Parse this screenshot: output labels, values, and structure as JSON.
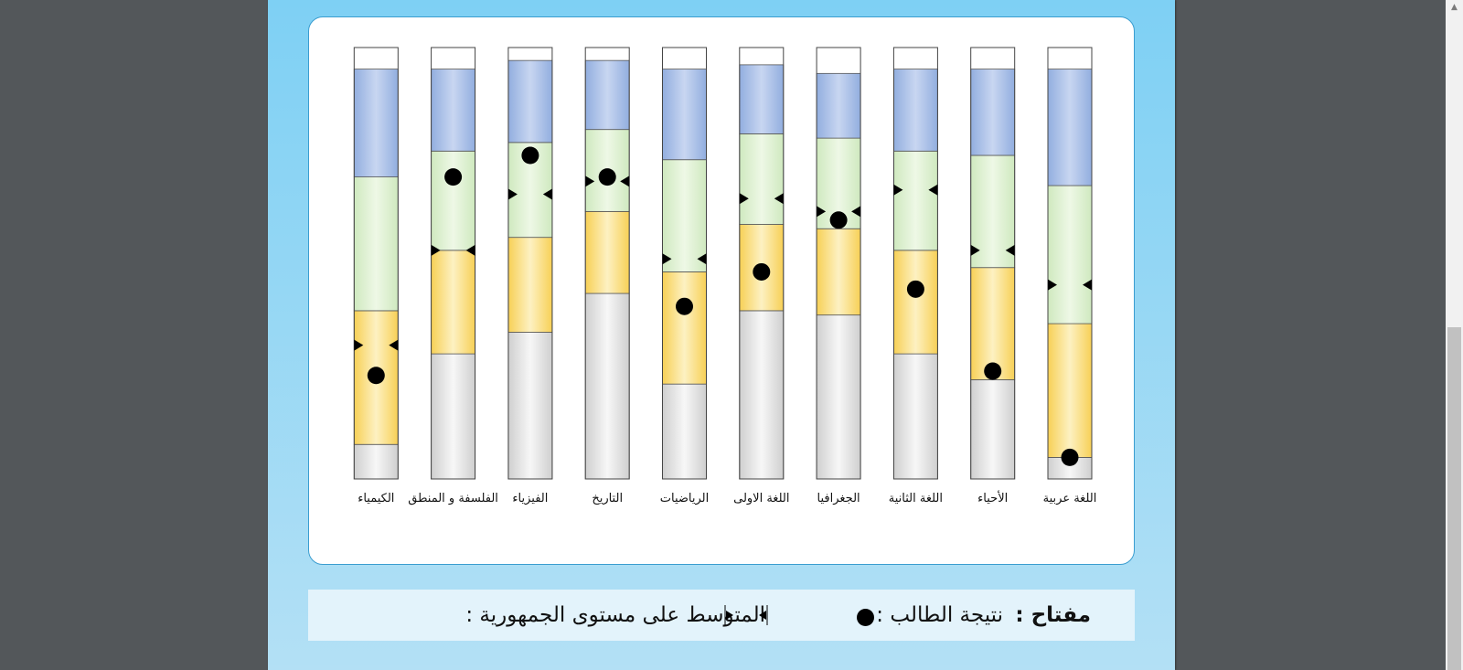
{
  "chart_data": {
    "type": "bar",
    "subtype": "stacked-range-with-markers",
    "categories": [
      "اللغة عربية",
      "الأحياء",
      "اللغة الثانية",
      "الجغرافيا",
      "اللغة الاولى",
      "الرياضيات",
      "التاريخ",
      "الفيزياء",
      "الفلسفة و المنطق",
      "الكيمياء"
    ],
    "ylim": [
      0,
      100
    ],
    "bands": {
      "colors": [
        "#cfcfcf",
        "#f7d056",
        "#cfe9bf",
        "#92aedf"
      ],
      "boundaries": [
        [
          5,
          36,
          68,
          95
        ],
        [
          23,
          49,
          75,
          95
        ],
        [
          29,
          53,
          76,
          95
        ],
        [
          38,
          58,
          79,
          94
        ],
        [
          39,
          59,
          80,
          96
        ],
        [
          22,
          48,
          74,
          95
        ],
        [
          43,
          62,
          81,
          97
        ],
        [
          34,
          56,
          78,
          97
        ],
        [
          29,
          53,
          76,
          95
        ],
        [
          8,
          39,
          70,
          95
        ]
      ]
    },
    "series": [
      {
        "name": "نتيجة الطالب",
        "values": [
          5,
          25,
          44,
          60,
          48,
          40,
          70,
          75,
          70,
          24
        ]
      },
      {
        "name": "المتوسط على مستوى الجمهورية",
        "values": [
          45,
          53,
          67,
          62,
          65,
          51,
          69,
          66,
          53,
          31
        ]
      }
    ],
    "colors": {
      "student_marker": "#000000",
      "average_marker": "#000000"
    }
  },
  "key": {
    "title": "مفتاح :",
    "student_label": "نتيجة الطالب :",
    "average_label": "المتوسط على مستوى الجمهورية :"
  }
}
